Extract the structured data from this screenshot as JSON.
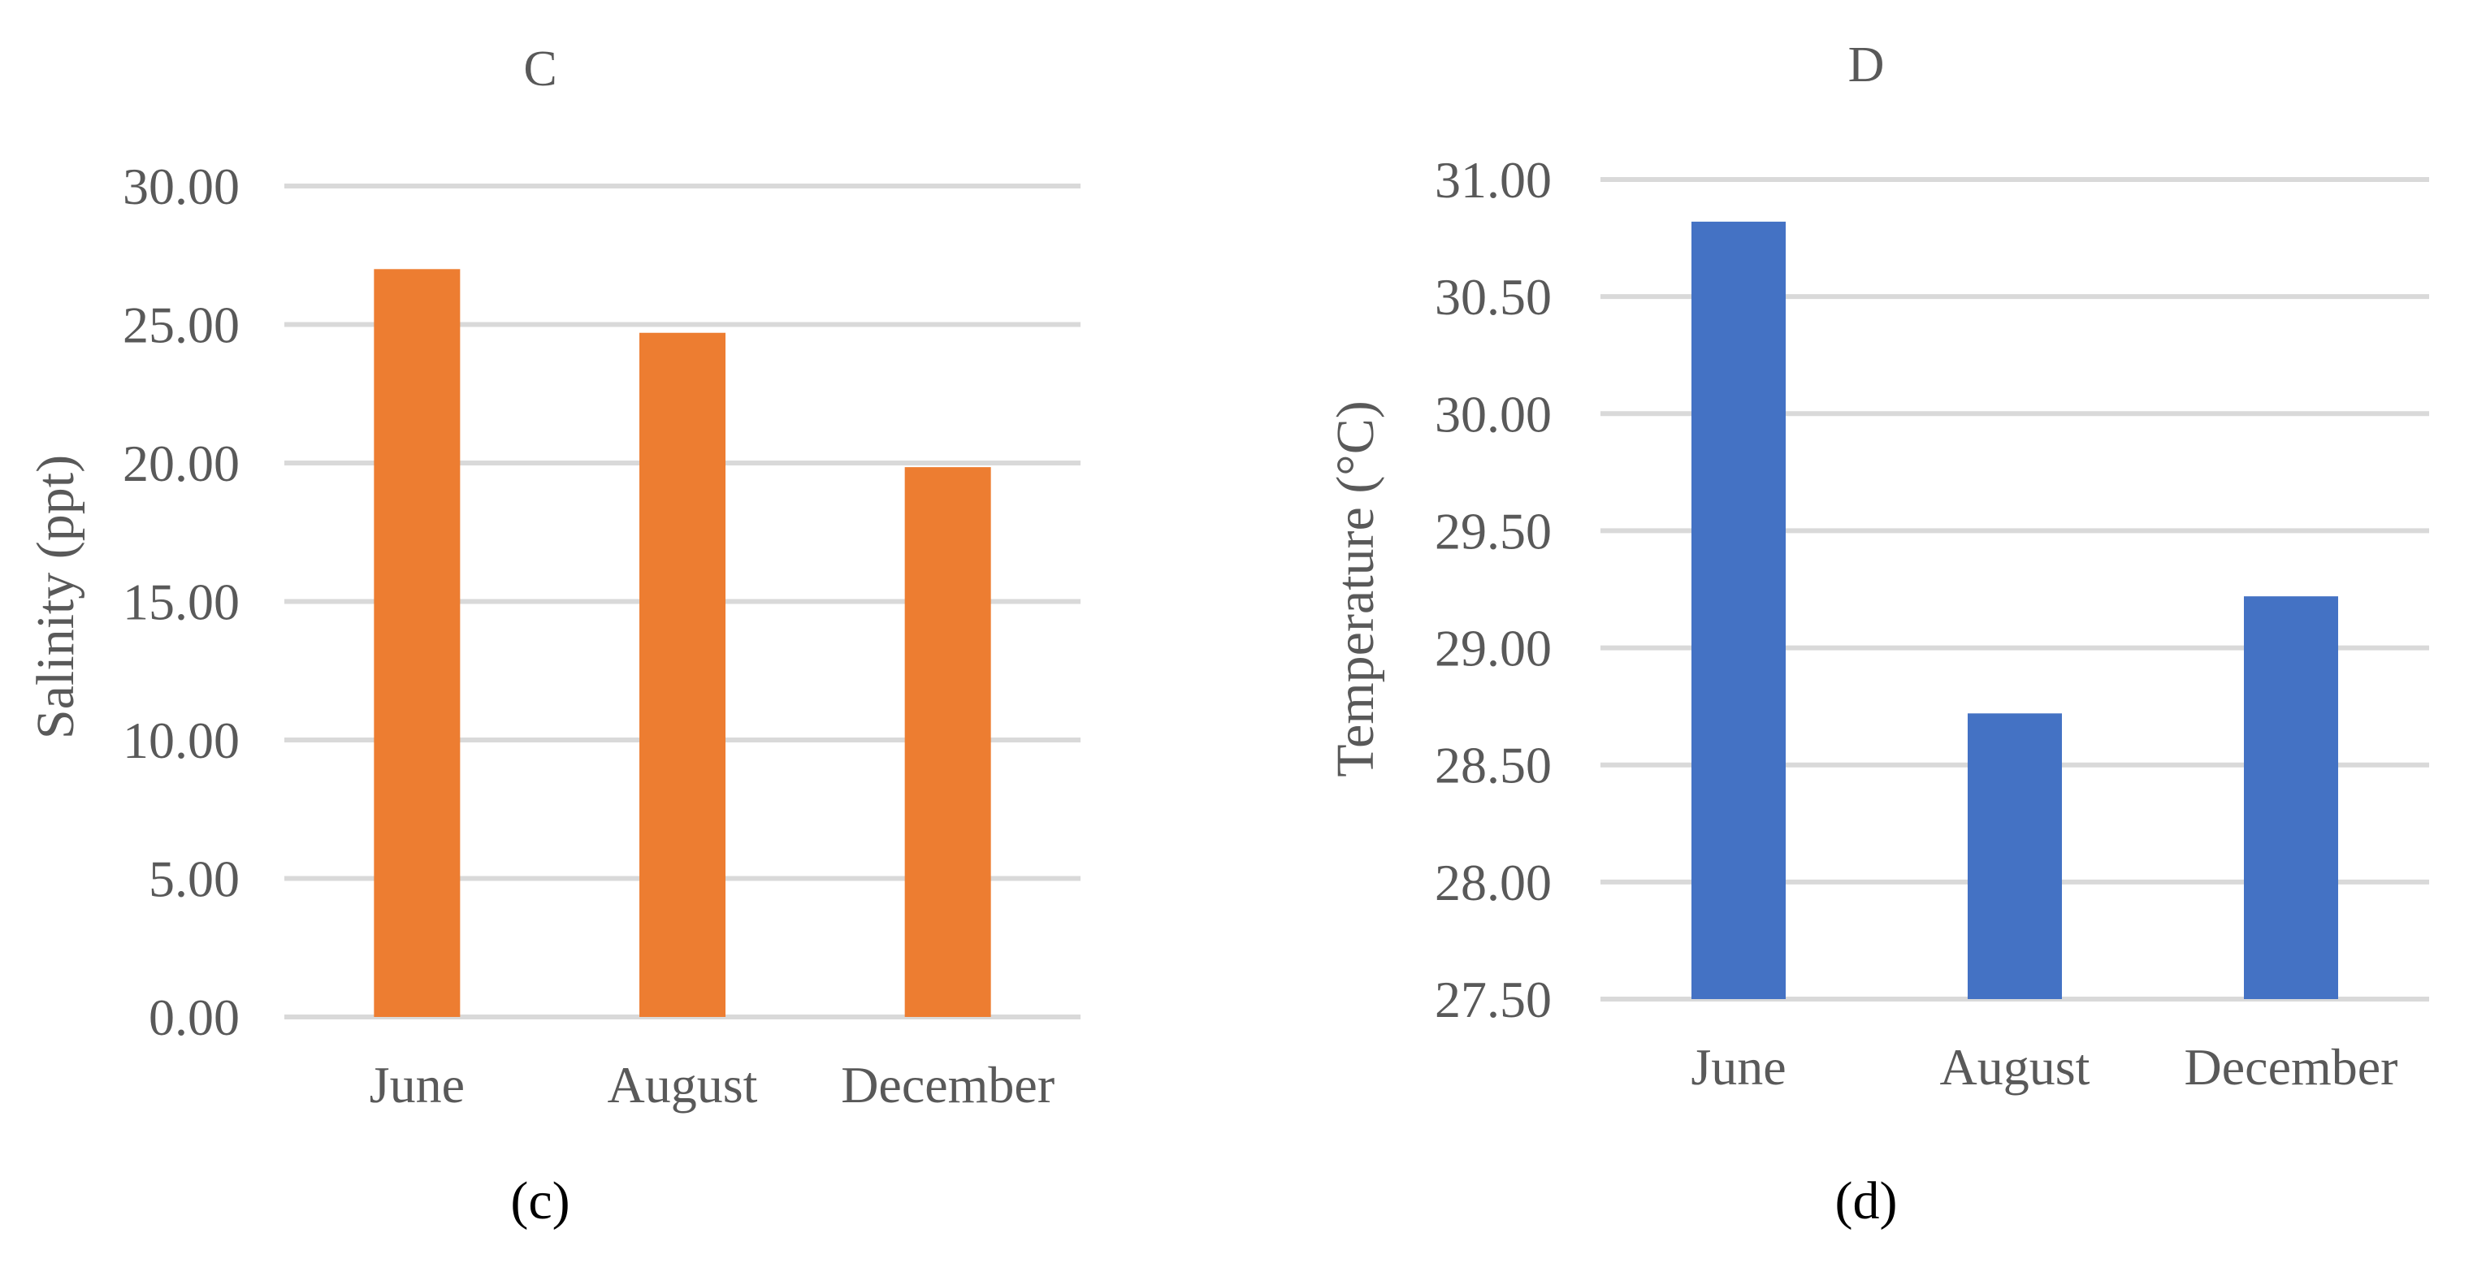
{
  "chart_data": [
    {
      "type": "bar",
      "title": "C",
      "caption": "(c)",
      "xlabel": "",
      "ylabel": "Salinity (ppt)",
      "categories": [
        "June",
        "August",
        "December"
      ],
      "values": [
        27.0,
        24.7,
        19.85
      ],
      "ylim": [
        0,
        30
      ],
      "yticks": [
        "0.00",
        "5.00",
        "10.00",
        "15.00",
        "20.00",
        "25.00",
        "30.00"
      ],
      "bar_color": "#ED7D31",
      "grid": true,
      "legend": "none"
    },
    {
      "type": "bar",
      "title": "D",
      "caption": "(d)",
      "xlabel": "",
      "ylabel": "Temperature (°C)",
      "categories": [
        "June",
        "August",
        "December"
      ],
      "values": [
        30.82,
        28.72,
        29.22
      ],
      "ylim": [
        27.5,
        31
      ],
      "yticks": [
        "27.50",
        "28.00",
        "28.50",
        "29.00",
        "29.50",
        "30.00",
        "30.50",
        "31.00"
      ],
      "bar_color": "#4472C4",
      "grid": true,
      "legend": "none"
    }
  ]
}
